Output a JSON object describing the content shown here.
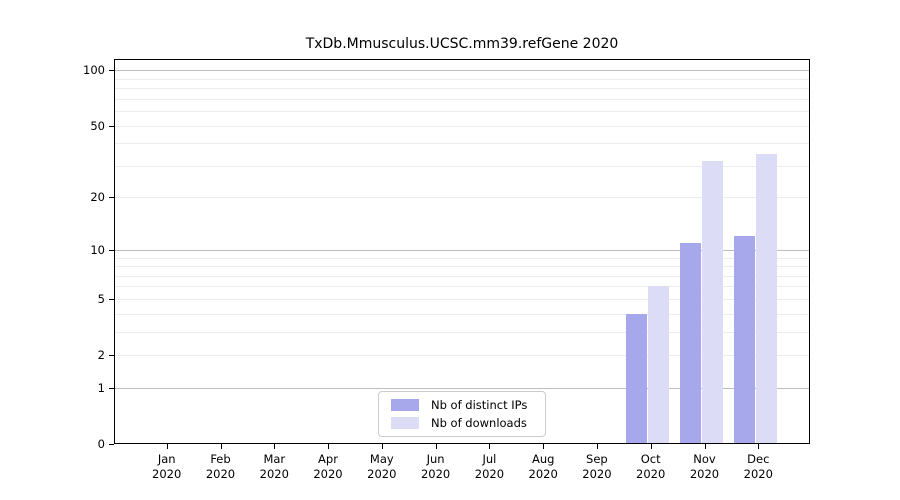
{
  "chart_data": {
    "type": "bar",
    "title": "TxDb.Mmusculus.UCSC.mm39.refGene 2020",
    "year": "2020",
    "categories": [
      "Jan",
      "Feb",
      "Mar",
      "Apr",
      "May",
      "Jun",
      "Jul",
      "Aug",
      "Sep",
      "Oct",
      "Nov",
      "Dec"
    ],
    "series": [
      {
        "name": "Nb of distinct IPs",
        "color": "#a7a7ec",
        "values": [
          0,
          0,
          0,
          0,
          0,
          0,
          0,
          0,
          0,
          4,
          11,
          12
        ]
      },
      {
        "name": "Nb of downloads",
        "color": "#dcdcf6",
        "values": [
          0,
          0,
          0,
          0,
          0,
          0,
          0,
          0,
          0,
          6,
          32,
          35
        ]
      }
    ],
    "y_axis": {
      "scale": "log10(1+x)",
      "ticks": [
        0,
        1,
        2,
        5,
        10,
        20,
        50,
        100
      ],
      "top_value": 115,
      "major_gridlines": [
        1,
        10,
        100
      ],
      "minor_gridlines": [
        2,
        3,
        4,
        5,
        6,
        7,
        8,
        9,
        20,
        30,
        40,
        50,
        60,
        70,
        80,
        90
      ]
    },
    "x_axis": {
      "label_line2": "2020"
    },
    "legend": {
      "position": "inside-bottom-center"
    },
    "grid": "on",
    "colors": {
      "axis": "#000000",
      "major_grid": "#bdbdbd",
      "minor_grid": "#ececec",
      "background": "#ffffff"
    }
  }
}
